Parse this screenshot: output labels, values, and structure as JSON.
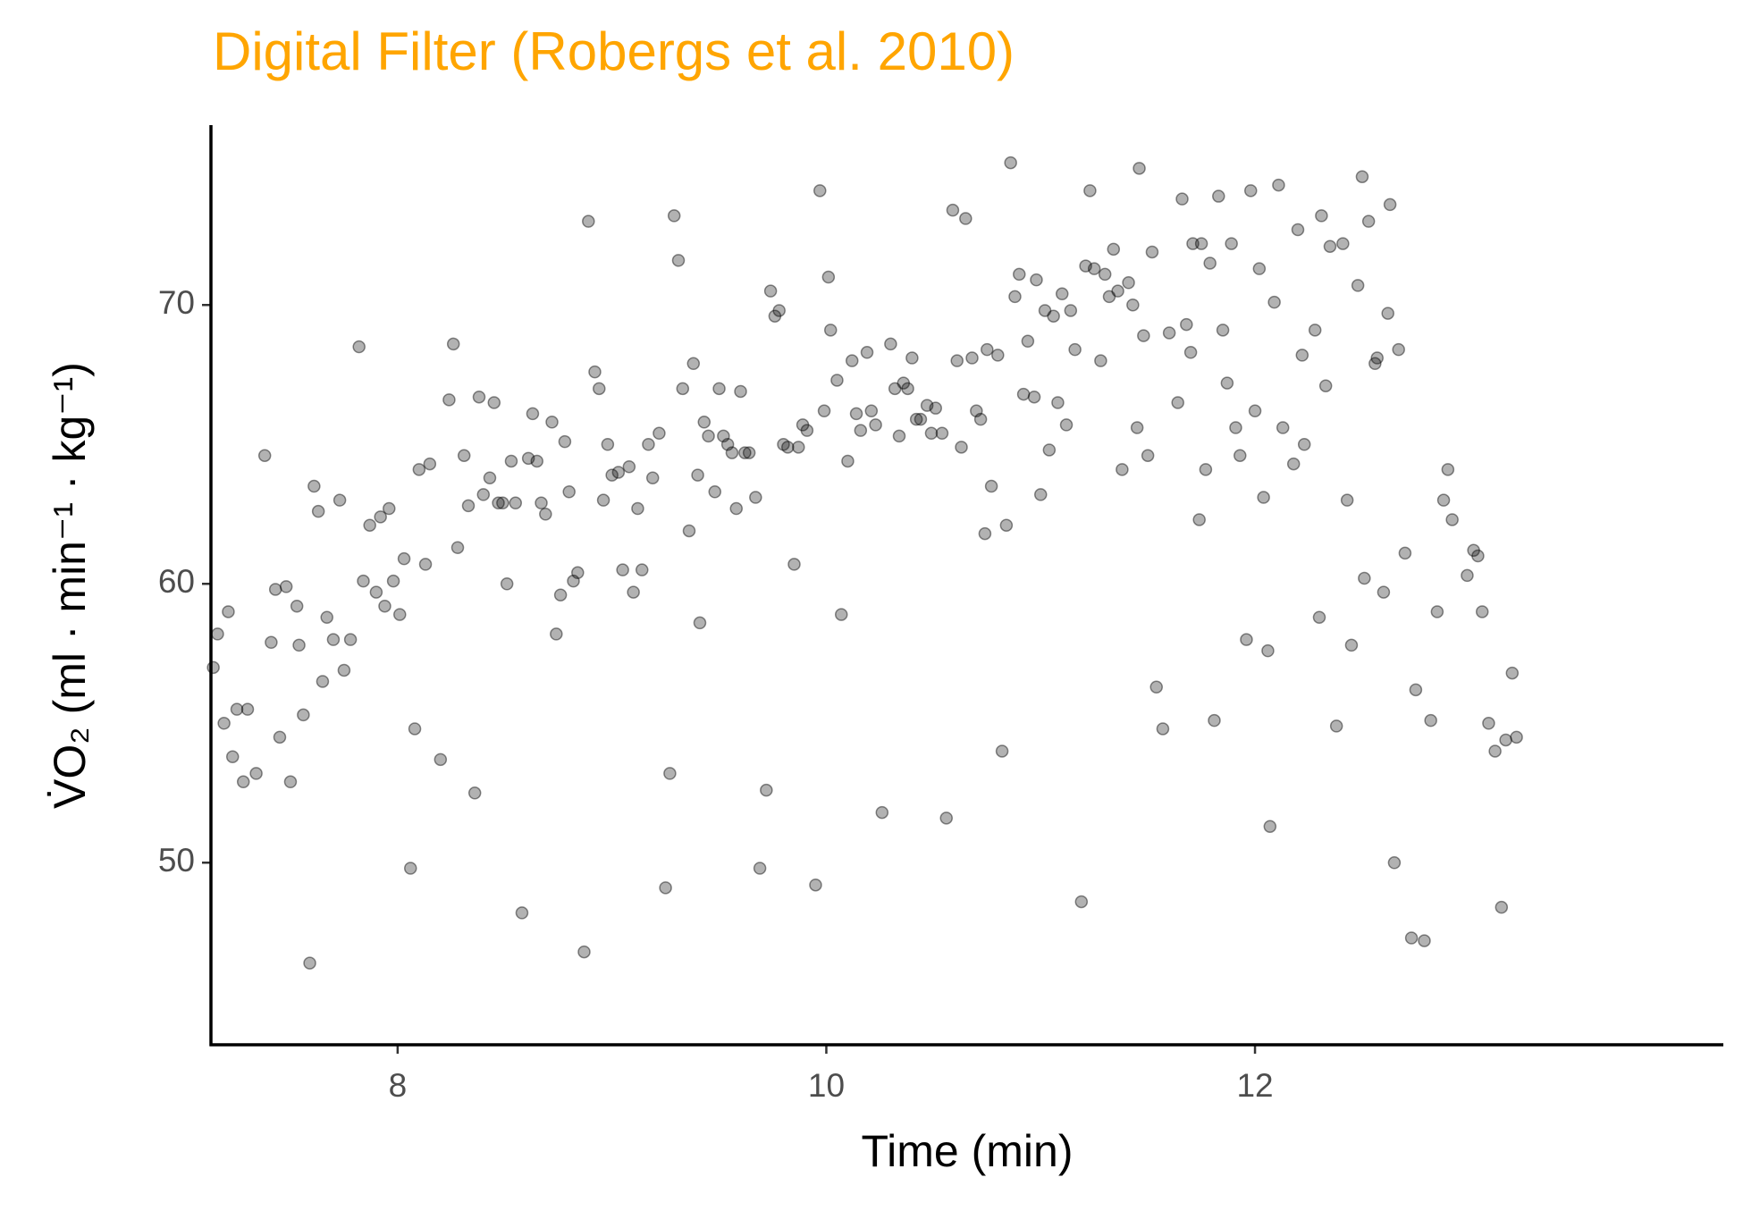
{
  "chart_data": {
    "type": "scatter",
    "title": "Digital Filter (Robergs et al. 2010)",
    "xlabel": "Time (min)",
    "ylabel": "V̇O₂ (ml · min⁻¹ · kg⁻¹)",
    "color": "#000000",
    "title_color": "#FFA500",
    "xlim": [
      7.129,
      14.185
    ],
    "ylim": [
      43.47,
      76.45
    ],
    "xticks": [
      8,
      10,
      12
    ],
    "yticks": [
      50,
      60,
      70
    ],
    "grid": false,
    "x": [
      7.14,
      7.16,
      7.19,
      7.21,
      7.23,
      7.25,
      7.28,
      7.3,
      7.34,
      7.38,
      7.41,
      7.43,
      7.45,
      7.48,
      7.5,
      7.53,
      7.54,
      7.56,
      7.59,
      7.61,
      7.63,
      7.65,
      7.67,
      7.7,
      7.73,
      7.75,
      7.78,
      7.82,
      7.84,
      7.87,
      7.9,
      7.92,
      7.94,
      7.96,
      7.98,
      8.01,
      8.03,
      8.06,
      8.08,
      8.1,
      8.13,
      8.15,
      8.2,
      8.24,
      8.26,
      8.28,
      8.31,
      8.33,
      8.36,
      8.38,
      8.4,
      8.43,
      8.45,
      8.47,
      8.49,
      8.51,
      8.53,
      8.55,
      8.58,
      8.61,
      8.63,
      8.65,
      8.67,
      8.69,
      8.72,
      8.74,
      8.76,
      8.78,
      8.8,
      8.82,
      8.84,
      8.87,
      8.89,
      8.92,
      8.94,
      8.96,
      8.98,
      9.0,
      9.03,
      9.05,
      9.08,
      9.1,
      9.12,
      9.14,
      9.17,
      9.19,
      9.22,
      9.25,
      9.27,
      9.29,
      9.31,
      9.33,
      9.36,
      9.38,
      9.4,
      9.41,
      9.43,
      9.45,
      9.48,
      9.5,
      9.52,
      9.54,
      9.56,
      9.58,
      9.6,
      9.62,
      9.64,
      9.67,
      9.69,
      9.72,
      9.74,
      9.76,
      9.78,
      9.8,
      9.82,
      9.85,
      9.87,
      9.89,
      9.91,
      9.95,
      9.97,
      9.99,
      10.01,
      10.02,
      10.05,
      10.07,
      10.1,
      10.12,
      10.14,
      10.16,
      10.19,
      10.21,
      10.23,
      10.26,
      10.3,
      10.32,
      10.34,
      10.36,
      10.38,
      10.4,
      10.42,
      10.44,
      10.47,
      10.49,
      10.51,
      10.54,
      10.56,
      10.59,
      10.61,
      10.63,
      10.65,
      10.68,
      10.7,
      10.72,
      10.74,
      10.75,
      10.77,
      10.8,
      10.82,
      10.84,
      10.86,
      10.88,
      10.9,
      10.92,
      10.94,
      10.97,
      10.98,
      11.0,
      11.02,
      11.04,
      11.06,
      11.08,
      11.1,
      11.12,
      11.14,
      11.16,
      11.19,
      11.21,
      11.23,
      11.25,
      11.28,
      11.3,
      11.32,
      11.34,
      11.36,
      11.38,
      11.41,
      11.43,
      11.45,
      11.46,
      11.48,
      11.5,
      11.52,
      11.54,
      11.57,
      11.6,
      11.64,
      11.66,
      11.68,
      11.7,
      11.71,
      11.74,
      11.75,
      11.77,
      11.79,
      11.81,
      11.83,
      11.85,
      11.87,
      11.89,
      11.91,
      11.93,
      11.96,
      11.98,
      12.0,
      12.02,
      12.04,
      12.06,
      12.07,
      12.09,
      12.11,
      12.13,
      12.18,
      12.2,
      12.22,
      12.23,
      12.28,
      12.3,
      12.31,
      12.33,
      12.35,
      12.38,
      12.41,
      12.43,
      12.45,
      12.48,
      12.5,
      12.51,
      12.53,
      12.56,
      12.57,
      12.6,
      12.62,
      12.63,
      12.65,
      12.67,
      12.7,
      12.73,
      12.75,
      12.79,
      12.82,
      12.85,
      12.88,
      12.9,
      12.92,
      12.99,
      13.02,
      13.04,
      13.06,
      13.09,
      13.12,
      13.15,
      13.17,
      13.2,
      13.22
    ],
    "values": [
      57.0,
      58.2,
      55.0,
      59.0,
      53.8,
      55.5,
      52.9,
      55.5,
      53.2,
      64.6,
      57.9,
      59.8,
      54.5,
      59.9,
      52.9,
      59.2,
      57.8,
      55.3,
      46.4,
      63.5,
      62.6,
      56.5,
      58.8,
      58.0,
      63.0,
      56.9,
      58.0,
      68.5,
      60.1,
      62.1,
      59.7,
      62.4,
      59.2,
      62.7,
      60.1,
      58.9,
      60.9,
      49.8,
      54.8,
      64.1,
      60.7,
      64.3,
      53.7,
      66.6,
      68.6,
      61.3,
      64.6,
      62.8,
      52.5,
      66.7,
      63.2,
      63.8,
      66.5,
      62.9,
      62.9,
      60.0,
      64.4,
      62.9,
      48.2,
      64.5,
      66.1,
      64.4,
      62.9,
      62.5,
      65.8,
      58.2,
      59.6,
      65.1,
      63.3,
      60.1,
      60.4,
      46.8,
      73.0,
      67.6,
      67.0,
      63.0,
      65.0,
      63.9,
      64.0,
      60.5,
      64.2,
      59.7,
      62.7,
      60.5,
      65.0,
      63.8,
      65.4,
      49.1,
      53.2,
      73.2,
      71.6,
      67.0,
      61.9,
      67.9,
      63.9,
      58.6,
      65.8,
      65.3,
      63.3,
      67.0,
      65.3,
      65.0,
      64.7,
      62.7,
      66.9,
      64.7,
      64.7,
      63.1,
      49.8,
      52.6,
      70.5,
      69.6,
      69.8,
      65.0,
      64.9,
      60.7,
      64.9,
      65.7,
      65.5,
      49.2,
      74.1,
      66.2,
      71.0,
      69.1,
      67.3,
      58.9,
      64.4,
      68.0,
      66.1,
      65.5,
      68.3,
      66.2,
      65.7,
      51.8,
      68.6,
      67.0,
      65.3,
      67.2,
      67.0,
      68.1,
      65.9,
      65.9,
      66.4,
      65.4,
      66.3,
      65.4,
      51.6,
      73.4,
      68.0,
      64.9,
      73.1,
      68.1,
      66.2,
      65.9,
      61.8,
      68.4,
      63.5,
      68.2,
      54.0,
      62.1,
      75.1,
      70.3,
      71.1,
      66.8,
      68.7,
      66.7,
      70.9,
      63.2,
      69.8,
      64.8,
      69.6,
      66.5,
      70.4,
      65.7,
      69.8,
      68.4,
      48.6,
      71.4,
      74.1,
      71.3,
      68.0,
      71.1,
      70.3,
      72.0,
      70.5,
      64.1,
      70.8,
      70.0,
      65.6,
      74.9,
      68.9,
      64.6,
      71.9,
      56.3,
      54.8,
      69.0,
      66.5,
      73.8,
      69.3,
      68.3,
      72.2,
      62.3,
      72.2,
      64.1,
      71.5,
      55.1,
      73.9,
      69.1,
      67.2,
      72.2,
      65.6,
      64.6,
      58.0,
      74.1,
      66.2,
      71.3,
      63.1,
      57.6,
      51.3,
      70.1,
      74.3,
      65.6,
      64.3,
      72.7,
      68.2,
      65.0,
      69.1,
      58.8,
      73.2,
      67.1,
      72.1,
      54.9,
      72.2,
      63.0,
      57.8,
      70.7,
      74.6,
      60.2,
      73.0,
      67.9,
      68.1,
      59.7,
      69.7,
      73.6,
      50.0,
      68.4,
      61.1,
      47.3,
      56.2,
      47.2,
      55.1,
      59.0,
      63.0,
      64.1,
      62.3,
      60.3,
      61.2,
      61.0,
      59.0,
      55.0,
      54.0,
      48.4,
      54.4,
      56.8,
      54.5
    ]
  }
}
